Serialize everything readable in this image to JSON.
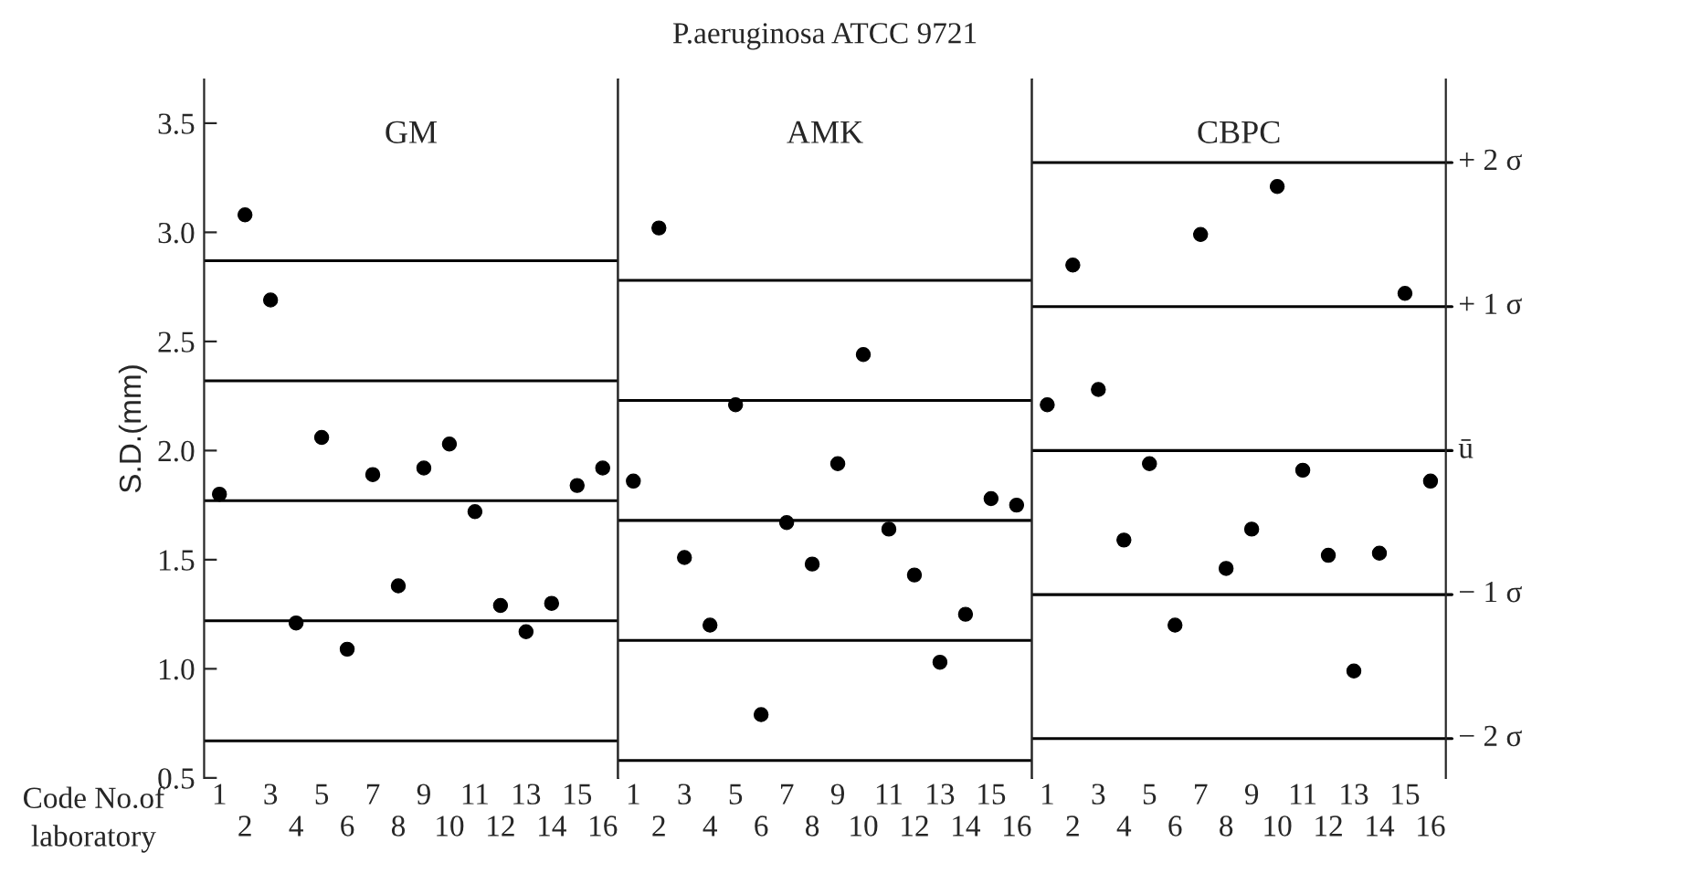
{
  "chart_data": [
    {
      "type": "scatter",
      "title": "GM",
      "ylabel": "S.D.(mm)",
      "annotations": [
        "P.aeruginosa ATCC 9721",
        "Code No.of\nlaboratory"
      ],
      "categories": [
        "1",
        "2",
        "3",
        "4",
        "5",
        "6",
        "7",
        "8",
        "9",
        "10",
        "11",
        "12",
        "13",
        "14",
        "15",
        "16"
      ],
      "series": [
        {
          "color": "#000000",
          "values": [
            1.8,
            3.08,
            2.69,
            1.21,
            2.06,
            1.09,
            1.89,
            1.38,
            1.92,
            2.03,
            1.72,
            1.29,
            1.17,
            1.3,
            1.84,
            1.92
          ]
        }
      ],
      "ylim": [
        0.5,
        3.7
      ],
      "yticks": [
        {
          "value": 0.5,
          "label": "0.5"
        },
        {
          "value": 1.0,
          "label": "1.0"
        },
        {
          "value": 1.5,
          "label": "1.5"
        },
        {
          "value": 2.0,
          "label": "2.0"
        },
        {
          "value": 2.5,
          "label": "2.5"
        },
        {
          "value": 3.0,
          "label": "3.0"
        },
        {
          "value": 3.5,
          "label": "3.5"
        }
      ],
      "ref_lines": [
        {
          "axis": "y",
          "value": 0.67
        },
        {
          "axis": "y",
          "value": 1.22
        },
        {
          "axis": "y",
          "value": 1.77
        },
        {
          "axis": "y",
          "value": 2.32
        },
        {
          "axis": "y",
          "value": 2.87
        }
      ],
      "marker": "circle",
      "grid": false,
      "legend": false
    },
    {
      "type": "scatter",
      "title": "AMK",
      "categories": [
        "1",
        "2",
        "3",
        "4",
        "5",
        "6",
        "7",
        "8",
        "9",
        "10",
        "11",
        "12",
        "13",
        "14",
        "15",
        "16"
      ],
      "series": [
        {
          "color": "#000000",
          "values": [
            1.86,
            3.02,
            1.51,
            1.2,
            2.21,
            0.79,
            1.67,
            1.48,
            1.94,
            2.44,
            1.64,
            1.43,
            1.03,
            1.25,
            1.78,
            1.75
          ]
        }
      ],
      "ylim": [
        0.5,
        3.7
      ],
      "tick_labels": "x",
      "ref_lines": [
        {
          "axis": "y",
          "value": 0.58
        },
        {
          "axis": "y",
          "value": 1.13
        },
        {
          "axis": "y",
          "value": 1.68
        },
        {
          "axis": "y",
          "value": 2.23
        },
        {
          "axis": "y",
          "value": 2.78
        }
      ],
      "marker": "circle",
      "grid": false,
      "legend": false
    },
    {
      "type": "scatter",
      "title": "CBPC",
      "categories": [
        "1",
        "2",
        "3",
        "4",
        "5",
        "6",
        "7",
        "8",
        "9",
        "10",
        "11",
        "12",
        "13",
        "14",
        "15",
        "16"
      ],
      "series": [
        {
          "color": "#000000",
          "values": [
            2.21,
            2.85,
            2.28,
            1.59,
            1.94,
            1.2,
            2.99,
            1.46,
            1.64,
            3.21,
            1.91,
            1.52,
            0.99,
            1.53,
            2.72,
            1.86
          ]
        }
      ],
      "ylim": [
        0.5,
        3.7
      ],
      "tick_labels": "x",
      "ref_lines": [
        {
          "axis": "y",
          "value": 0.68,
          "label": "− 2 σ"
        },
        {
          "axis": "y",
          "value": 1.34,
          "label": "− 1 σ"
        },
        {
          "axis": "y",
          "value": 2.0,
          "label": "ū"
        },
        {
          "axis": "y",
          "value": 2.66,
          "label": "+ 1 σ"
        },
        {
          "axis": "y",
          "value": 3.32,
          "label": "+ 2 σ"
        }
      ],
      "marker": "circle",
      "grid": false,
      "legend": false
    }
  ]
}
